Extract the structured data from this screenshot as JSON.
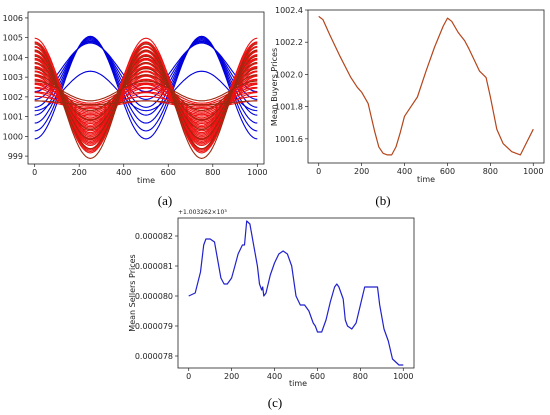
{
  "chart_data": [
    {
      "panel": "(a)",
      "type": "line",
      "xlabel": "time",
      "ylabel": "",
      "xlim": [
        -30,
        1030
      ],
      "ylim": [
        998.6,
        1006.3
      ],
      "xticks": [
        "0",
        "200",
        "400",
        "600",
        "800",
        "1000"
      ],
      "yticks": [
        "999",
        "1000",
        "1001",
        "1002",
        "1003",
        "1004",
        "1005",
        "1006"
      ],
      "series_colors": [
        "#0000dd",
        "#ee1111",
        "#9a2a10"
      ],
      "series_groups": [
        {
          "color": "#0000dd",
          "count": 8,
          "center_min": 1002.3,
          "center_max": 1003.5,
          "amp_min": 1.0,
          "amp_max": 2.6,
          "period": 500,
          "phase_deg": 270
        },
        {
          "color": "#ee1111",
          "count": 34,
          "center_min": 1001.6,
          "center_max": 1002.3,
          "amp_min": 0.2,
          "amp_max": 2.8,
          "period": 500,
          "phase_deg": 90
        },
        {
          "color": "#9a2a10",
          "count": 8,
          "center_min": 1001.7,
          "center_max": 1002.3,
          "amp_min": 0.1,
          "amp_max": 2.9,
          "period": 500,
          "phase_deg": 90
        }
      ]
    },
    {
      "panel": "(b)",
      "type": "line",
      "xlabel": "time",
      "ylabel": "Mean Buyers Prices",
      "xlim": [
        -50,
        1050
      ],
      "ylim": [
        1001.45,
        1002.4
      ],
      "xticks": [
        "0",
        "200",
        "400",
        "600",
        "800",
        "1000"
      ],
      "yticks": [
        "1001.6",
        "1001.8",
        "1002.0",
        "1002.2",
        "1002.4"
      ],
      "color": "#b5451b",
      "series": [
        {
          "x": [
            0,
            20,
            50,
            100,
            150,
            180,
            200,
            230,
            260,
            280,
            300,
            320,
            340,
            360,
            380,
            400,
            430,
            460,
            500,
            540,
            580,
            600,
            620,
            650,
            680,
            700,
            750,
            780,
            800,
            830,
            860,
            900,
            940,
            970,
            1000
          ],
          "y": [
            1002.36,
            1002.34,
            1002.25,
            1002.11,
            1001.98,
            1001.92,
            1001.89,
            1001.82,
            1001.65,
            1001.55,
            1001.51,
            1001.5,
            1001.5,
            1001.55,
            1001.64,
            1001.74,
            1001.8,
            1001.86,
            1002.02,
            1002.17,
            1002.3,
            1002.35,
            1002.33,
            1002.26,
            1002.21,
            1002.16,
            1002.02,
            1001.98,
            1001.86,
            1001.66,
            1001.57,
            1001.52,
            1001.5,
            1001.58,
            1001.66
          ]
        }
      ]
    },
    {
      "panel": "(c)",
      "type": "line",
      "xlabel": "time",
      "ylabel": "Mean Sellers Prices",
      "offset_text": "+1.003262×10³",
      "xlim": [
        -50,
        1050
      ],
      "ylim": [
        7.76e-05,
        8.26e-05
      ],
      "xticks": [
        "0",
        "200",
        "400",
        "600",
        "800",
        "1000"
      ],
      "yticks": [
        "0.000078",
        "0.000079",
        "0.000080",
        "0.000081",
        "0.000082"
      ],
      "color": "#2222cc",
      "series": [
        {
          "x": [
            0,
            30,
            55,
            70,
            80,
            100,
            120,
            135,
            150,
            165,
            180,
            200,
            215,
            230,
            250,
            260,
            270,
            285,
            300,
            320,
            330,
            340,
            345,
            350,
            360,
            380,
            400,
            420,
            440,
            460,
            480,
            500,
            520,
            540,
            560,
            580,
            590,
            600,
            620,
            640,
            660,
            680,
            690,
            700,
            720,
            730,
            740,
            760,
            780,
            800,
            820,
            840,
            860,
            880,
            890,
            910,
            930,
            950,
            980,
            1000
          ],
          "y": [
            8e-05,
            8.01e-05,
            8.08e-05,
            8.17e-05,
            8.19e-05,
            8.19e-05,
            8.18e-05,
            8.12e-05,
            8.06e-05,
            8.04e-05,
            8.04e-05,
            8.06e-05,
            8.1e-05,
            8.14e-05,
            8.17e-05,
            8.17e-05,
            8.25e-05,
            8.24e-05,
            8.18e-05,
            8.1e-05,
            8.04e-05,
            8.02e-05,
            8.03e-05,
            8e-05,
            8.01e-05,
            8.07e-05,
            8.11e-05,
            8.14e-05,
            8.15e-05,
            8.14e-05,
            8.1e-05,
            8e-05,
            7.97e-05,
            7.97e-05,
            7.95e-05,
            7.91e-05,
            7.9e-05,
            7.88e-05,
            7.88e-05,
            7.92e-05,
            7.98e-05,
            8.03e-05,
            8.04e-05,
            8.03e-05,
            7.99e-05,
            7.92e-05,
            7.9e-05,
            7.89e-05,
            7.91e-05,
            7.97e-05,
            8.03e-05,
            8.03e-05,
            8.03e-05,
            8.03e-05,
            7.97e-05,
            7.89e-05,
            7.85e-05,
            7.79e-05,
            7.77e-05,
            7.77e-05
          ]
        }
      ]
    }
  ],
  "labels": {
    "panel_a": "(a)",
    "panel_b": "(b)",
    "panel_c": "(c)"
  }
}
